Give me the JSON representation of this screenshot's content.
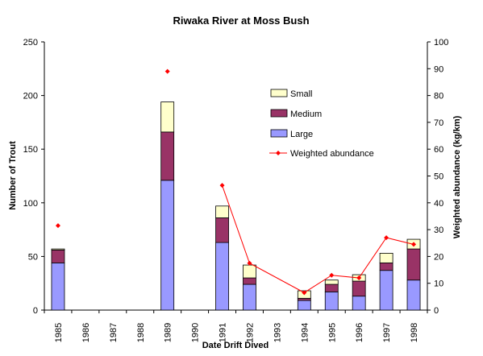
{
  "chart_data": {
    "type": "bar",
    "title": "Riwaka River at Moss Bush",
    "xlabel": "Date Drift Dived",
    "ylabel": "Number of Trout",
    "y2label": "Weighted abundance (kg/km)",
    "categories": [
      "1985",
      "1986",
      "1987",
      "1988",
      "1989",
      "1990",
      "1991",
      "1992",
      "1993",
      "1994",
      "1995",
      "1996",
      "1997",
      "1998"
    ],
    "ylim": [
      0,
      250
    ],
    "y_ticks": [
      0,
      50,
      100,
      150,
      200,
      250
    ],
    "y2lim": [
      0,
      100
    ],
    "y2_ticks": [
      0,
      10,
      20,
      30,
      40,
      50,
      60,
      70,
      80,
      90,
      100
    ],
    "stacked": true,
    "series": [
      {
        "name": "Large",
        "color": "#9999ff",
        "values": [
          44,
          0,
          0,
          0,
          121,
          0,
          63,
          24,
          0,
          9,
          17,
          13,
          37,
          28
        ]
      },
      {
        "name": "Medium",
        "color": "#993366",
        "values": [
          12,
          0,
          0,
          0,
          45,
          0,
          23,
          6,
          0,
          2,
          7,
          14,
          7,
          29
        ]
      },
      {
        "name": "Small",
        "color": "#ffffcc",
        "values": [
          1,
          0,
          0,
          0,
          28,
          0,
          11,
          12,
          0,
          7,
          4,
          6,
          9,
          9
        ]
      }
    ],
    "line_series": {
      "name": "Weighted abundance",
      "color": "#ff0000",
      "axis": "right",
      "values": [
        31.5,
        null,
        null,
        null,
        89,
        null,
        46.5,
        17.5,
        null,
        6.5,
        13,
        12,
        27,
        24.5
      ],
      "connect_from_index": 6
    },
    "legend": {
      "placement": "upper-right",
      "entries": [
        "Small",
        "Medium",
        "Large",
        "Weighted abundance"
      ]
    },
    "grid": false
  }
}
